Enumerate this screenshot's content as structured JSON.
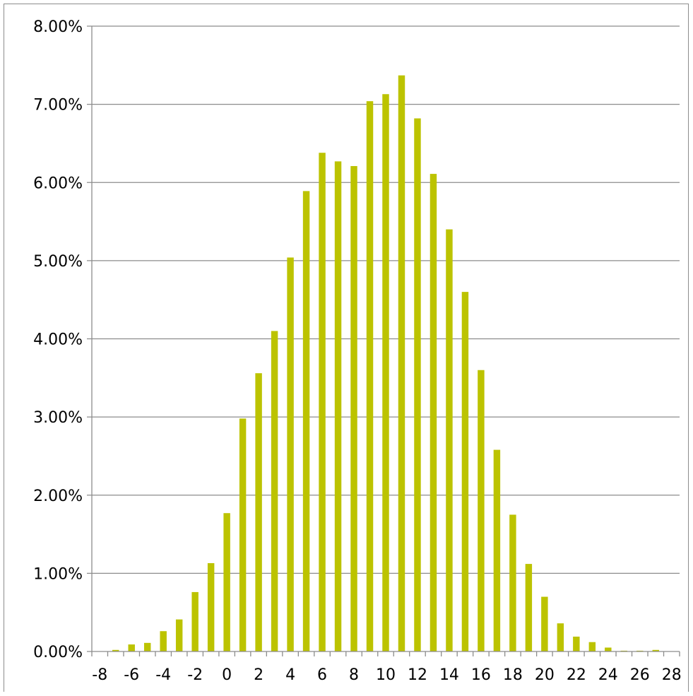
{
  "chart_data": {
    "type": "bar",
    "title": "",
    "xlabel": "",
    "ylabel": "",
    "ylim": [
      0,
      0.08
    ],
    "y_ticks": [
      "0.00%",
      "1.00%",
      "2.00%",
      "3.00%",
      "4.00%",
      "5.00%",
      "6.00%",
      "7.00%",
      "8.00%"
    ],
    "x_tick_labels": [
      "-8",
      "-6",
      "-4",
      "-2",
      "0",
      "2",
      "4",
      "6",
      "8",
      "10",
      "12",
      "14",
      "16",
      "18",
      "20",
      "22",
      "24",
      "26",
      "28"
    ],
    "grid": "horizontal",
    "legend": "none",
    "bar_color": "#bcc300",
    "gridline_color": "#8c8c8c",
    "categories": [
      -7,
      -6,
      -5,
      -4,
      -3,
      -2,
      -1,
      0,
      1,
      2,
      3,
      4,
      5,
      6,
      7,
      8,
      9,
      10,
      11,
      12,
      13,
      14,
      15,
      16,
      17,
      18,
      19,
      20,
      21,
      22,
      23,
      24,
      25,
      26,
      27
    ],
    "values": [
      0.0002,
      0.0009,
      0.0011,
      0.0026,
      0.0041,
      0.0076,
      0.0113,
      0.0177,
      0.0298,
      0.0356,
      0.041,
      0.0504,
      0.0589,
      0.0638,
      0.0627,
      0.0621,
      0.0704,
      0.0713,
      0.0737,
      0.0682,
      0.0611,
      0.054,
      0.046,
      0.036,
      0.0258,
      0.0175,
      0.0112,
      0.007,
      0.0036,
      0.0019,
      0.0012,
      0.0005,
      0.0001,
      0.0001,
      0.0002
    ]
  }
}
